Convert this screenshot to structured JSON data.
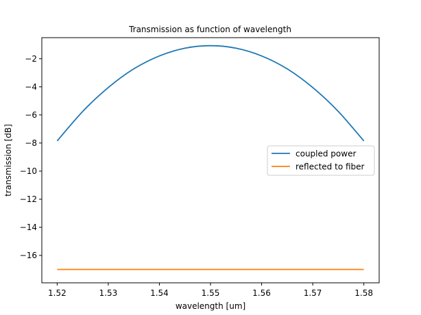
{
  "chart_data": {
    "type": "line",
    "title": "Transmission as function of wavelength",
    "xlabel": "wavelength [um]",
    "ylabel": "transmission [dB]",
    "xlim": [
      1.517,
      1.583
    ],
    "ylim": [
      -17.95,
      -0.5
    ],
    "xticks": [
      1.52,
      1.53,
      1.54,
      1.55,
      1.56,
      1.57,
      1.58
    ],
    "xtick_labels": [
      "1.52",
      "1.53",
      "1.54",
      "1.55",
      "1.56",
      "1.57",
      "1.58"
    ],
    "yticks": [
      -2,
      -4,
      -6,
      -8,
      -10,
      -12,
      -14,
      -16
    ],
    "ytick_labels": [
      "−2",
      "−4",
      "−6",
      "−8",
      "−10",
      "−12",
      "−14",
      "−16"
    ],
    "grid": false,
    "legend_position": "center-right",
    "x": [
      1.52,
      1.525,
      1.53,
      1.535,
      1.54,
      1.545,
      1.55,
      1.555,
      1.56,
      1.565,
      1.57,
      1.575,
      1.58
    ],
    "series": [
      {
        "name": "coupled power",
        "color": "#1f77b4",
        "values": [
          -7.85,
          -5.75,
          -4.05,
          -2.72,
          -1.8,
          -1.25,
          -1.07,
          -1.25,
          -1.8,
          -2.72,
          -4.05,
          -5.75,
          -7.85
        ]
      },
      {
        "name": "reflected to fiber",
        "color": "#ff7f0e",
        "values": [
          -17.0,
          -17.0,
          -17.0,
          -17.0,
          -17.0,
          -17.0,
          -17.0,
          -17.0,
          -17.0,
          -17.0,
          -17.0,
          -17.0,
          -17.0
        ]
      }
    ]
  }
}
